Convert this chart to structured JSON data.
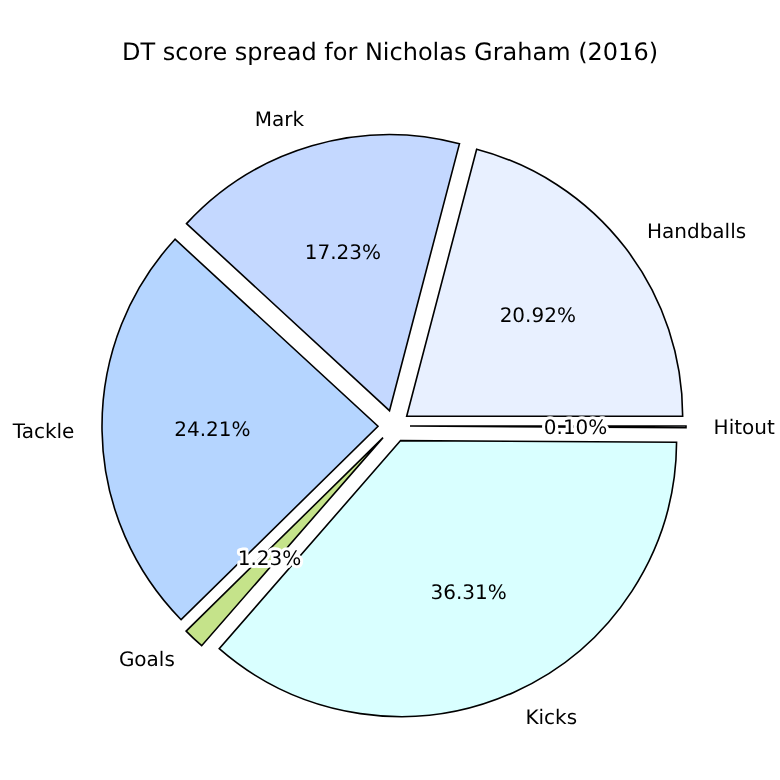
{
  "chart_data": {
    "type": "pie",
    "title": "DT score spread for Nicholas Graham (2016)",
    "categories": [
      "Handballs",
      "Mark",
      "Tackle",
      "Goals",
      "Kicks",
      "Hitout"
    ],
    "values": [
      20.92,
      17.23,
      24.21,
      1.23,
      36.31,
      0.1
    ],
    "value_labels": [
      "20.92%",
      "17.23%",
      "24.21%",
      "1.23%",
      "36.31%",
      "0.10%"
    ],
    "colors": [
      "#e8f0ff",
      "#c4d8ff",
      "#b5d5ff",
      "#c5e38a",
      "#d9ffff",
      "#e8f0ff"
    ]
  }
}
